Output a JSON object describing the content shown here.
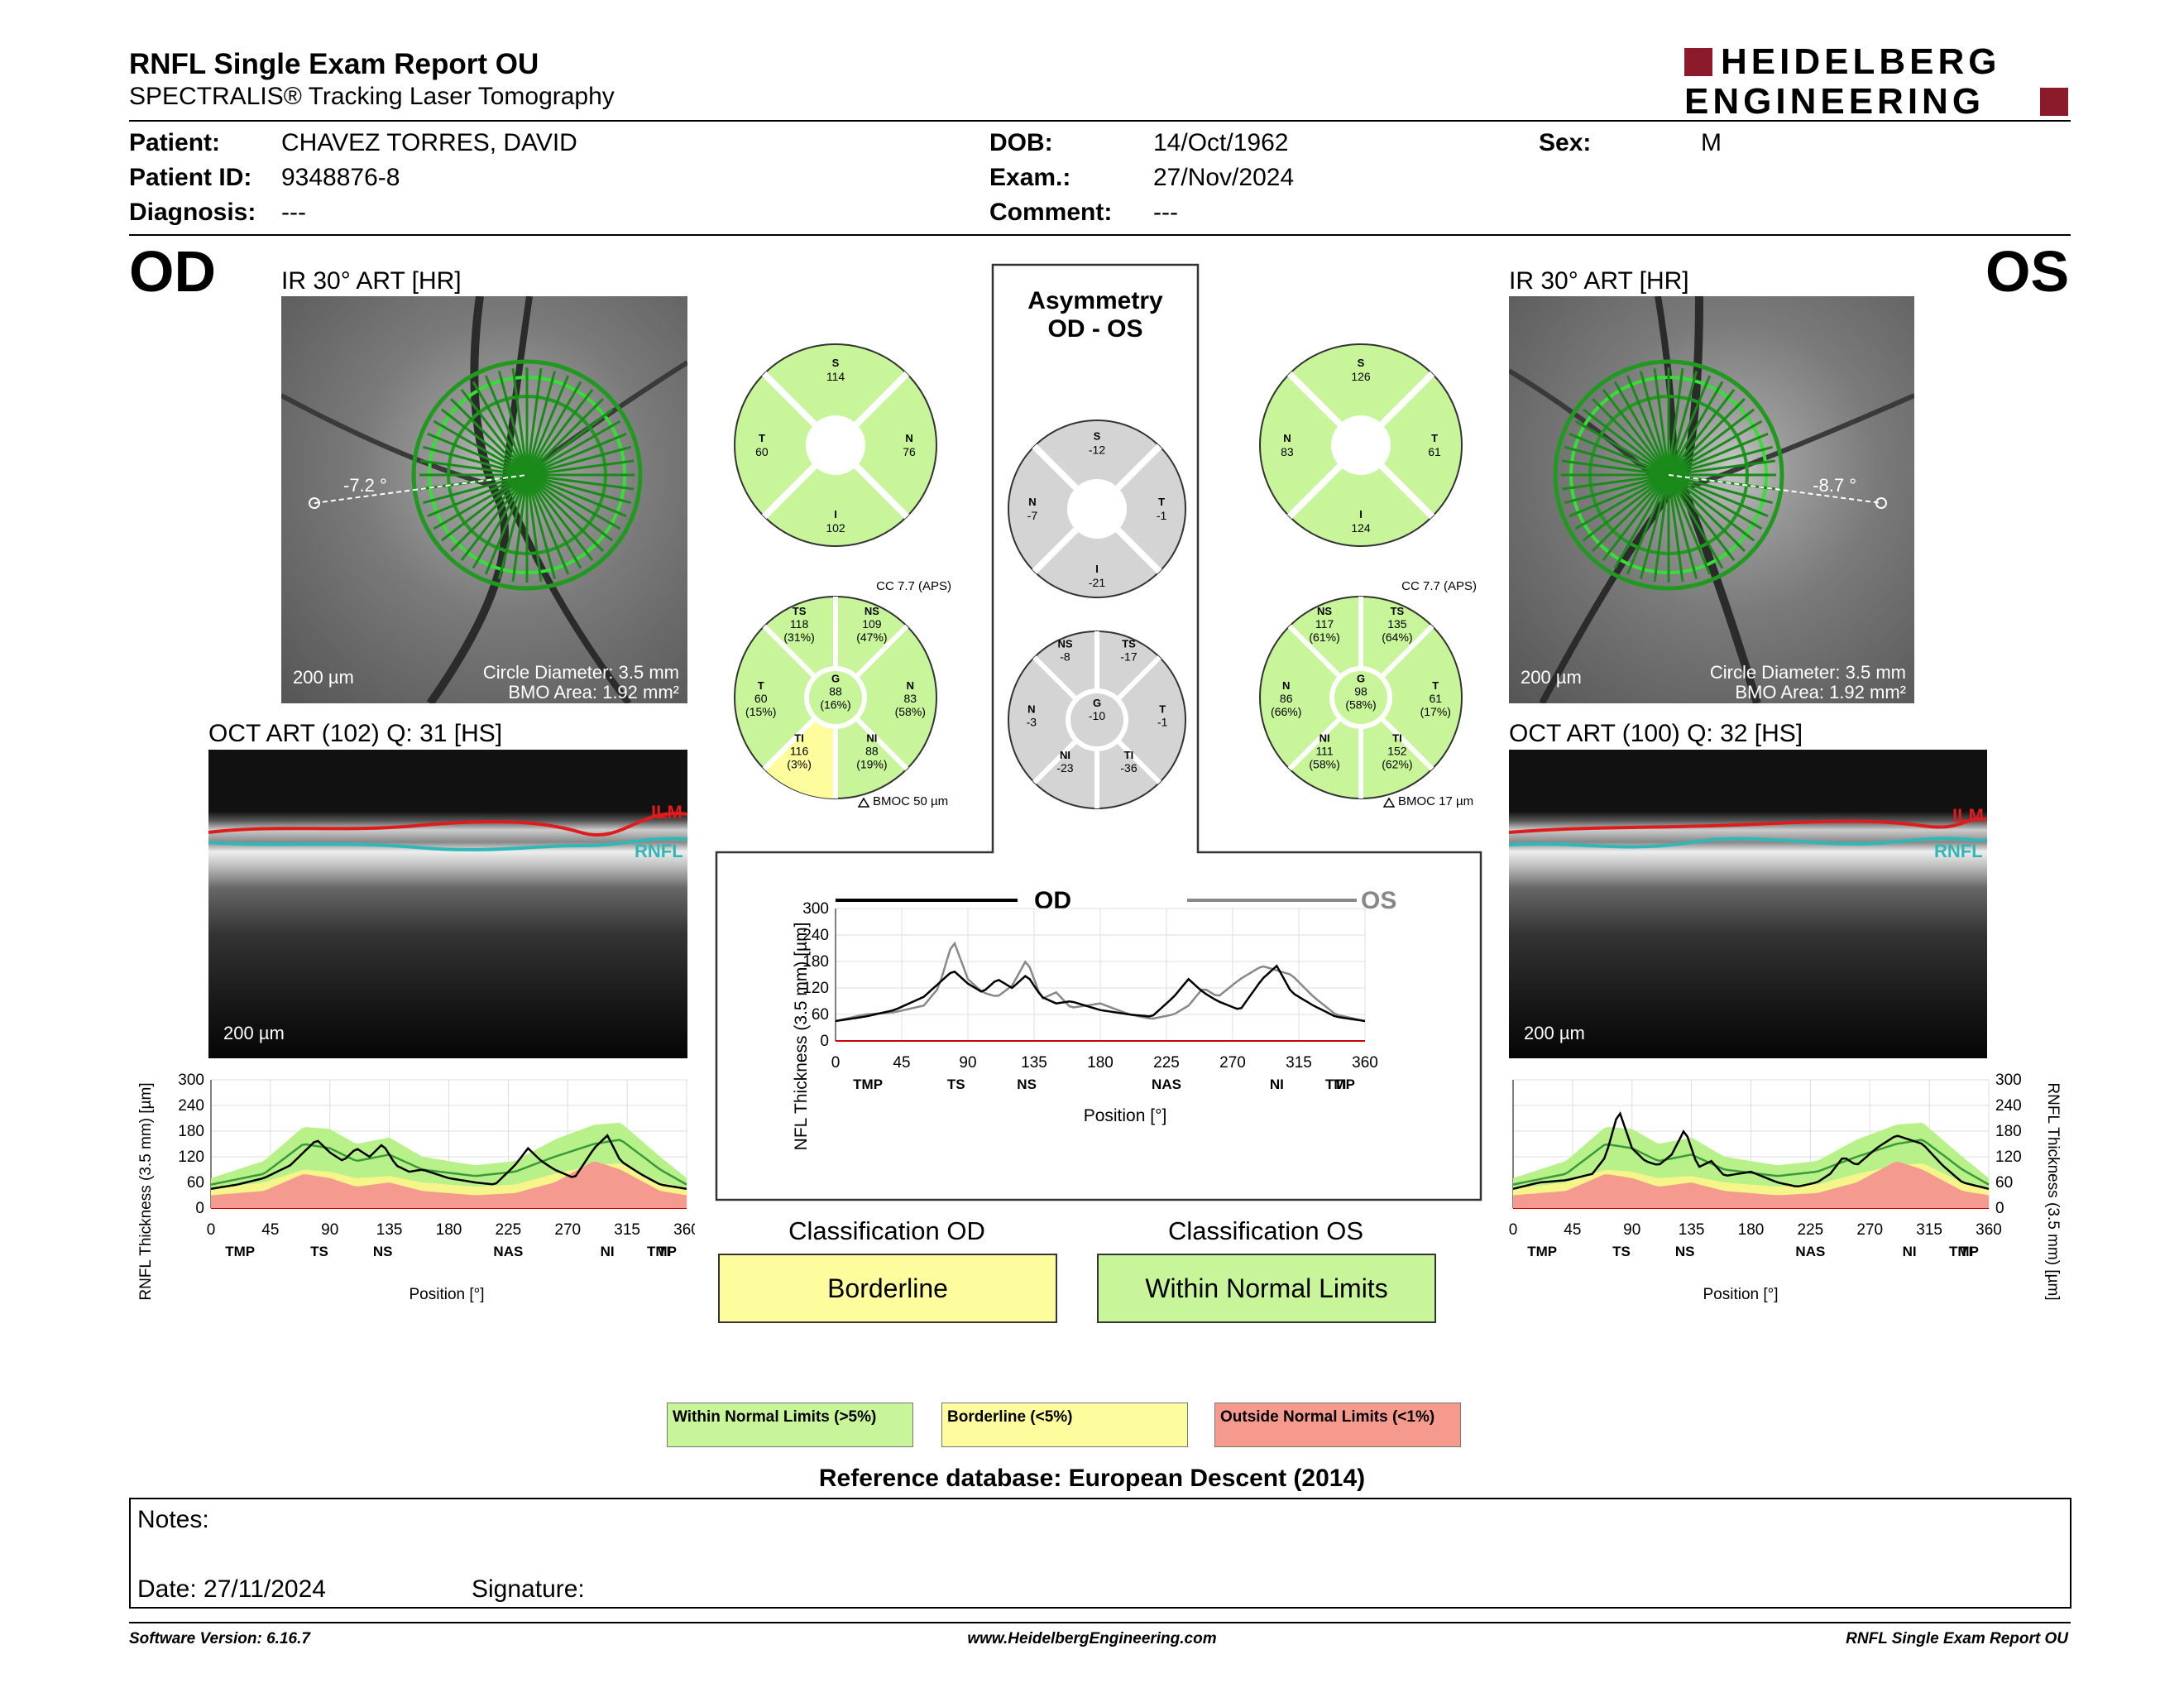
{
  "header": {
    "title": "RNFL Single Exam Report OU",
    "subtitle": "SPECTRALIS® Tracking Laser Tomography",
    "logo_line1": "HEIDELBERG",
    "logo_line2": "ENGINEERING",
    "brand_color": "#8b1a2b"
  },
  "patient": {
    "patient_label": "Patient:",
    "patient": "CHAVEZ TORRES, DAVID",
    "id_label": "Patient ID:",
    "id": "9348876-8",
    "diagnosis_label": "Diagnosis:",
    "diagnosis": "---",
    "dob_label": "DOB:",
    "dob": "14/Oct/1962",
    "exam_label": "Exam.:",
    "exam": "27/Nov/2024",
    "comment_label": "Comment:",
    "comment": "---",
    "sex_label": "Sex:",
    "sex": "M"
  },
  "od": {
    "eye": "OD",
    "ir_label": "IR 30° ART [HR]",
    "angle": "-7.2 °",
    "scale": "200 µm",
    "circle_diameter": "Circle Diameter: 3.5 mm",
    "bmo_area": "BMO Area: 1.92 mm²",
    "oct_label": "OCT ART (102) Q: 31 [HS]",
    "oct_scale": "200 µm",
    "ilm": "ILM",
    "rnfl": "RNFL",
    "quad": {
      "S": "114",
      "T": "60",
      "N": "76",
      "I": "102"
    },
    "sectors": {
      "TS": [
        "118",
        "(31%)"
      ],
      "NS": [
        "109",
        "(47%)"
      ],
      "T": [
        "60",
        "(15%)"
      ],
      "G": [
        "88",
        "(16%)"
      ],
      "N": [
        "83",
        "(58%)"
      ],
      "TI": [
        "116",
        "(3%)"
      ],
      "NI": [
        "88",
        "(19%)"
      ]
    },
    "cc": "CC 7.7 (APS)",
    "bmoc": "BMOC 50 µm",
    "classification_label": "Classification OD",
    "classification": "Borderline"
  },
  "os": {
    "eye": "OS",
    "ir_label": "IR 30° ART [HR]",
    "angle": "-8.7 °",
    "scale": "200 µm",
    "circle_diameter": "Circle Diameter: 3.5 mm",
    "bmo_area": "BMO Area: 1.92 mm²",
    "oct_label": "OCT ART (100) Q: 32 [HS]",
    "oct_scale": "200 µm",
    "ilm": "ILM",
    "rnfl": "RNFL",
    "quad": {
      "S": "126",
      "N": "83",
      "T": "61",
      "I": "124"
    },
    "sectors": {
      "NS": [
        "117",
        "(61%)"
      ],
      "TS": [
        "135",
        "(64%)"
      ],
      "N": [
        "86",
        "(66%)"
      ],
      "G": [
        "98",
        "(58%)"
      ],
      "T": [
        "61",
        "(17%)"
      ],
      "NI": [
        "111",
        "(58%)"
      ],
      "TI": [
        "152",
        "(62%)"
      ]
    },
    "cc": "CC 7.7 (APS)",
    "bmoc": "BMOC 17 µm",
    "classification_label": "Classification OS",
    "classification": "Within Normal Limits"
  },
  "asymmetry": {
    "title1": "Asymmetry",
    "title2": "OD - OS",
    "quad": {
      "S": "-12",
      "N": "-7",
      "T": "-1",
      "I": "-21"
    },
    "sectors": {
      "NS": "-8",
      "TS": "-17",
      "N": "-3",
      "G": "-10",
      "T": "-1",
      "NI": "-23",
      "TI": "-36"
    },
    "sector_labels": {
      "NS": "NS",
      "TS": "TS",
      "N": "N",
      "G": "G",
      "T": "T",
      "NI": "NI",
      "TI": "TI",
      "S": "S",
      "I": "I"
    }
  },
  "chart_data": [
    {
      "type": "line",
      "title": "",
      "legend": [
        "OD",
        "OS"
      ],
      "ylabel": "RNFL Thickness (3.5 mm) [µm]",
      "xlabel": "Position [°]",
      "ylim": [
        0,
        300
      ],
      "xlim": [
        0,
        360
      ],
      "yticks": [
        "300",
        "240",
        "180",
        "120",
        "60",
        "0"
      ],
      "xticks": [
        "0",
        "45",
        "90",
        "135",
        "180",
        "225",
        "270",
        "315",
        "360"
      ],
      "sector_ticks": [
        "TMP",
        "TS",
        "NS",
        "NAS",
        "NI",
        "TI",
        "TMP"
      ],
      "x": [
        0,
        20,
        40,
        60,
        70,
        80,
        90,
        100,
        110,
        120,
        130,
        140,
        150,
        160,
        180,
        200,
        215,
        230,
        240,
        250,
        260,
        275,
        290,
        300,
        310,
        325,
        340,
        360
      ],
      "series": [
        {
          "name": "OD",
          "color": "#000000",
          "values": [
            45,
            55,
            70,
            100,
            130,
            160,
            130,
            110,
            140,
            120,
            150,
            100,
            85,
            90,
            70,
            60,
            55,
            100,
            140,
            110,
            90,
            70,
            140,
            170,
            110,
            80,
            55,
            45
          ]
        },
        {
          "name": "OS",
          "color": "#808080",
          "values": [
            45,
            60,
            65,
            80,
            120,
            230,
            140,
            110,
            100,
            125,
            185,
            95,
            110,
            75,
            85,
            60,
            50,
            60,
            80,
            120,
            100,
            140,
            170,
            160,
            150,
            100,
            60,
            45
          ]
        }
      ]
    }
  ],
  "od_chart": {
    "ylabel": "RNFL Thickness (3.5 mm) [µm]",
    "xlabel": "Position [°]",
    "yticks": [
      "300",
      "240",
      "180",
      "120",
      "60",
      "0"
    ],
    "xticks": [
      "0",
      "45",
      "90",
      "135",
      "180",
      "225",
      "270",
      "315",
      "360"
    ],
    "sector_ticks": [
      "TMP",
      "TS",
      "NS",
      "NAS",
      "NI",
      "TI",
      "TMP"
    ]
  },
  "os_chart": {
    "ylabel": "RNFL Thickness (3.5 mm) [µm]",
    "xlabel": "Position [°]",
    "yticks": [
      "300",
      "240",
      "180",
      "120",
      "60",
      "0"
    ],
    "xticks": [
      "0",
      "45",
      "90",
      "135",
      "180",
      "225",
      "270",
      "315",
      "360"
    ],
    "sector_ticks": [
      "TMP",
      "TS",
      "NS",
      "NAS",
      "NI",
      "TI",
      "TMP"
    ]
  },
  "legend": {
    "wnl": "Within Normal Limits (>5%)",
    "bl": "Borderline (<5%)",
    "onl": "Outside Normal Limits (<1%)",
    "wnl_color": "#c8f59a",
    "bl_color": "#fdfd9e",
    "onl_color": "#f79a8e"
  },
  "reference": "Reference database: European Descent (2014)",
  "notes": {
    "notes_label": "Notes:",
    "date_label": "Date: 27/11/2024",
    "signature_label": "Signature:"
  },
  "footer": {
    "version": "Software Version: 6.16.7",
    "website": "www.HeidelbergEngineering.com",
    "report": "RNFL Single Exam Report OU"
  }
}
